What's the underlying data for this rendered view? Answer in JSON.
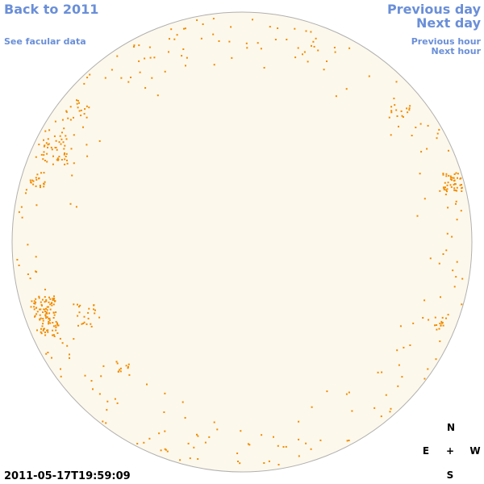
{
  "header": {
    "back_link": "Back to 2011",
    "facular_link": "See facular data"
  },
  "navigation": {
    "previous_day": "Previous day",
    "next_day": "Next day",
    "previous_hour": "Previous hour",
    "next_hour": "Next hour"
  },
  "compass": {
    "north": "N",
    "east": "E",
    "center": "+",
    "west": "W",
    "south": "S"
  },
  "timestamp": "2011-05-17T19:59:09"
}
